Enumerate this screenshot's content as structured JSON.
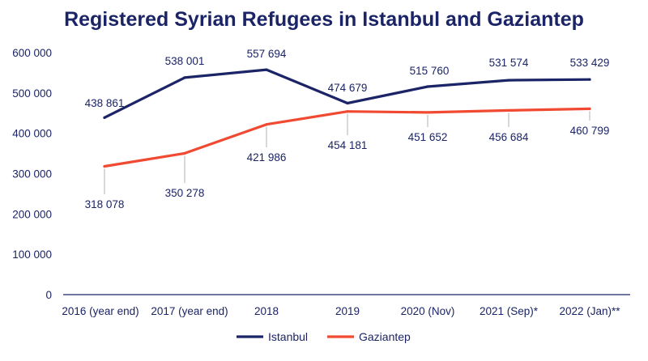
{
  "chart_data": {
    "type": "line",
    "title": "Registered Syrian Refugees in Istanbul and Gaziantep",
    "categories": [
      "2016 (year end)",
      "2017 (year end)",
      "2018",
      "2019",
      "2020 (Nov)",
      "2021 (Sep)*",
      "2022 (Jan)**"
    ],
    "ylim": [
      0,
      600000
    ],
    "yticks": [
      0,
      100000,
      200000,
      300000,
      400000,
      500000,
      600000
    ],
    "ytick_labels": [
      "0",
      "100 000",
      "200 000",
      "300 000",
      "400 000",
      "500 000",
      "600 000"
    ],
    "grid": false,
    "legend_position": "bottom-center",
    "series": [
      {
        "name": "Istanbul",
        "color": "#1b2466",
        "values": [
          438861,
          538001,
          557694,
          474679,
          515760,
          531574,
          533429
        ],
        "labels": [
          "438 861",
          "538 001",
          "557 694",
          "474 679",
          "515 760",
          "531 574",
          "533 429"
        ]
      },
      {
        "name": "Gaziantep",
        "color": "#f04a32",
        "values": [
          318078,
          350278,
          421986,
          454181,
          451652,
          456684,
          460799
        ],
        "labels": [
          "318 078",
          "350 278",
          "421 986",
          "454 181",
          "451 652",
          "456 684",
          "460 799"
        ]
      }
    ]
  }
}
